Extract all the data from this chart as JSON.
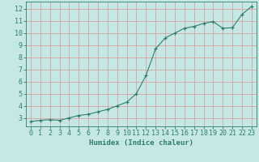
{
  "x": [
    0,
    1,
    2,
    3,
    4,
    5,
    6,
    7,
    8,
    9,
    10,
    11,
    12,
    13,
    14,
    15,
    16,
    17,
    18,
    19,
    20,
    21,
    22,
    23
  ],
  "y": [
    2.7,
    2.8,
    2.85,
    2.8,
    3.0,
    3.2,
    3.3,
    3.5,
    3.7,
    4.0,
    4.3,
    5.0,
    6.5,
    8.7,
    9.6,
    10.0,
    10.4,
    10.55,
    10.8,
    10.95,
    10.4,
    10.45,
    11.55,
    12.2
  ],
  "bg_color": "#c5e8e5",
  "grid_color": "#d9a0a0",
  "line_color": "#2e7d6e",
  "marker_color": "#2e7d6e",
  "xlabel": "Humidex (Indice chaleur)",
  "xlim": [
    -0.5,
    23.5
  ],
  "ylim": [
    2.3,
    12.6
  ],
  "yticks": [
    3,
    4,
    5,
    6,
    7,
    8,
    9,
    10,
    11,
    12
  ],
  "xticks": [
    0,
    1,
    2,
    3,
    4,
    5,
    6,
    7,
    8,
    9,
    10,
    11,
    12,
    13,
    14,
    15,
    16,
    17,
    18,
    19,
    20,
    21,
    22,
    23
  ],
  "font_color": "#2e7d6e",
  "xlabel_fontsize": 6.5,
  "tick_fontsize": 6
}
